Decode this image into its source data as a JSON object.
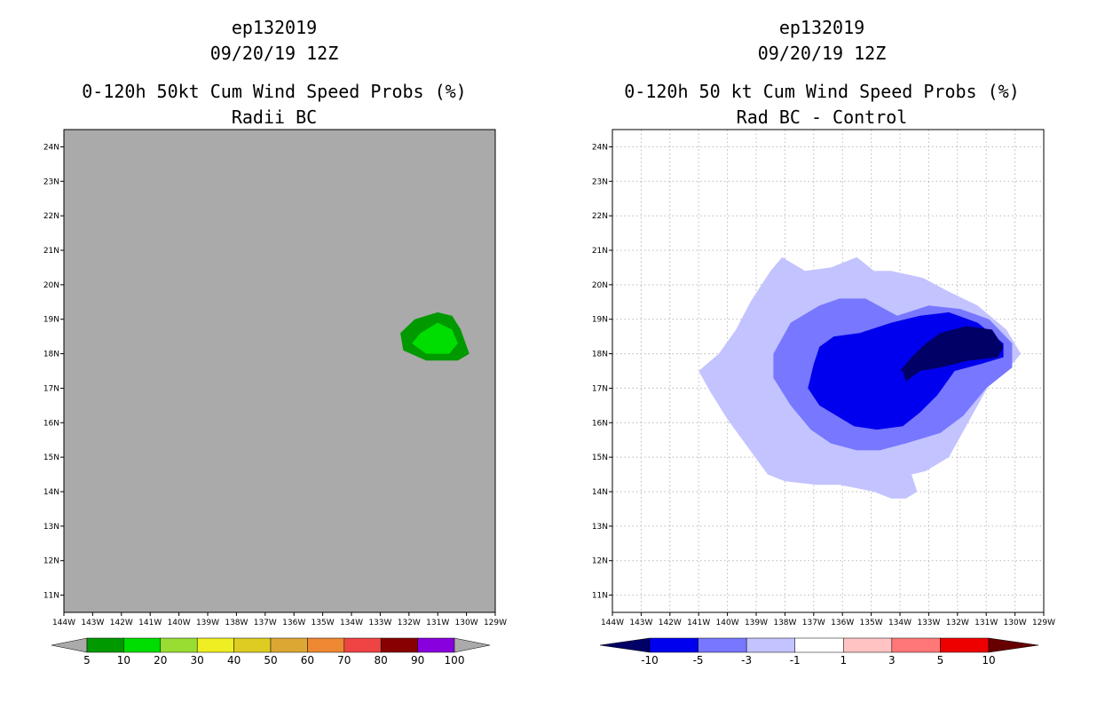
{
  "left_panel": {
    "title_lines": [
      "ep132019",
      "09/20/19 12Z",
      "0-120h 50kt Cum Wind Speed Probs (%)",
      "Radii BC"
    ]
  },
  "right_panel": {
    "title_lines": [
      "ep132019",
      "09/20/19 12Z",
      "0-120h 50 kt Cum Wind Speed Probs (%)",
      "Rad BC - Control"
    ]
  },
  "chart_data": [
    {
      "type": "filled-contour-map",
      "title": "0-120h 50kt Cum Wind Speed Probs (%)",
      "subtitle": "Radii BC",
      "storm": "ep132019",
      "valid_time": "09/20/19 12Z",
      "lon_range": [
        -144,
        -129
      ],
      "lat_range": [
        10.5,
        24.5
      ],
      "x_ticks": [
        "144W",
        "143W",
        "142W",
        "141W",
        "140W",
        "139W",
        "138W",
        "137W",
        "136W",
        "135W",
        "134W",
        "133W",
        "132W",
        "131W",
        "130W",
        "129W"
      ],
      "y_ticks": [
        "11N",
        "12N",
        "13N",
        "14N",
        "15N",
        "16N",
        "17N",
        "18N",
        "19N",
        "20N",
        "21N",
        "22N",
        "23N",
        "24N"
      ],
      "background_color": "#aaaaaa",
      "grid": false,
      "contours": [
        {
          "level": 5,
          "color": "#009900",
          "lonlat": [
            [
              -131.0,
              19.2
            ],
            [
              -130.5,
              19.1
            ],
            [
              -130.2,
              18.7
            ],
            [
              -129.9,
              18.0
            ],
            [
              -130.3,
              17.8
            ],
            [
              -131.4,
              17.8
            ],
            [
              -132.2,
              18.1
            ],
            [
              -132.3,
              18.6
            ],
            [
              -131.8,
              19.0
            ]
          ]
        },
        {
          "level": 10,
          "color": "#00dd00",
          "lonlat": [
            [
              -131.0,
              18.9
            ],
            [
              -130.5,
              18.7
            ],
            [
              -130.3,
              18.3
            ],
            [
              -130.6,
              18.0
            ],
            [
              -131.4,
              18.0
            ],
            [
              -131.9,
              18.3
            ],
            [
              -131.6,
              18.6
            ]
          ]
        }
      ],
      "colorbar": {
        "labels": [
          "5",
          "10",
          "20",
          "30",
          "40",
          "50",
          "60",
          "70",
          "80",
          "90",
          "100"
        ],
        "under_color": "#aaaaaa",
        "colors": [
          "#009900",
          "#00dd00",
          "#99dd33",
          "#eeee22",
          "#ddcc22",
          "#dda733",
          "#ee8833",
          "#ee4444",
          "#880000",
          "#8800dd"
        ],
        "over_color": "#aaaaaa"
      }
    },
    {
      "type": "filled-contour-map",
      "title": "0-120h 50 kt Cum Wind Speed Probs (%)",
      "subtitle": "Rad BC - Control",
      "storm": "ep132019",
      "valid_time": "09/20/19 12Z",
      "lon_range": [
        -144,
        -129
      ],
      "lat_range": [
        10.5,
        24.5
      ],
      "x_ticks": [
        "144W",
        "143W",
        "142W",
        "141W",
        "140W",
        "139W",
        "138W",
        "137W",
        "136W",
        "135W",
        "134W",
        "133W",
        "132W",
        "131W",
        "130W",
        "129W"
      ],
      "y_ticks": [
        "11N",
        "12N",
        "13N",
        "14N",
        "15N",
        "16N",
        "17N",
        "18N",
        "19N",
        "20N",
        "21N",
        "22N",
        "23N",
        "24N"
      ],
      "background_color": "#ffffff",
      "grid": true,
      "contours": [
        {
          "level": -1,
          "color": "#c3c3ff",
          "lonlat": [
            [
              -138.1,
              20.8
            ],
            [
              -137.3,
              20.4
            ],
            [
              -136.4,
              20.5
            ],
            [
              -135.5,
              20.8
            ],
            [
              -134.9,
              20.4
            ],
            [
              -134.3,
              20.4
            ],
            [
              -133.2,
              20.2
            ],
            [
              -132.3,
              19.8
            ],
            [
              -131.3,
              19.4
            ],
            [
              -130.3,
              18.7
            ],
            [
              -129.8,
              18.0
            ],
            [
              -130.3,
              17.5
            ],
            [
              -130.9,
              17.1
            ],
            [
              -131.5,
              16.2
            ],
            [
              -132.3,
              15.0
            ],
            [
              -133.1,
              14.6
            ],
            [
              -133.6,
              14.5
            ],
            [
              -133.4,
              14.0
            ],
            [
              -133.8,
              13.8
            ],
            [
              -134.3,
              13.8
            ],
            [
              -134.9,
              14.0
            ],
            [
              -136.1,
              14.2
            ],
            [
              -136.9,
              14.2
            ],
            [
              -138.0,
              14.3
            ],
            [
              -138.6,
              14.5
            ],
            [
              -139.3,
              15.3
            ],
            [
              -140.0,
              16.1
            ],
            [
              -140.6,
              16.9
            ],
            [
              -141.0,
              17.5
            ],
            [
              -140.3,
              18.0
            ],
            [
              -139.7,
              18.7
            ],
            [
              -139.2,
              19.5
            ],
            [
              -138.5,
              20.4
            ]
          ]
        },
        {
          "level": -3,
          "color": "#7777ff",
          "lonlat": [
            [
              -136.1,
              19.6
            ],
            [
              -135.2,
              19.6
            ],
            [
              -134.1,
              19.1
            ],
            [
              -133.0,
              19.4
            ],
            [
              -131.9,
              19.3
            ],
            [
              -130.9,
              19.0
            ],
            [
              -130.1,
              18.3
            ],
            [
              -130.1,
              17.6
            ],
            [
              -131.0,
              17.0
            ],
            [
              -131.8,
              16.2
            ],
            [
              -132.6,
              15.7
            ],
            [
              -133.8,
              15.4
            ],
            [
              -134.7,
              15.2
            ],
            [
              -135.5,
              15.2
            ],
            [
              -136.4,
              15.4
            ],
            [
              -137.1,
              15.8
            ],
            [
              -137.8,
              16.5
            ],
            [
              -138.4,
              17.3
            ],
            [
              -138.4,
              18.0
            ],
            [
              -137.8,
              18.9
            ],
            [
              -136.8,
              19.4
            ]
          ]
        },
        {
          "level": -5,
          "color": "#0000ee",
          "lonlat": [
            [
              -136.3,
              18.5
            ],
            [
              -135.4,
              18.6
            ],
            [
              -134.3,
              18.9
            ],
            [
              -133.3,
              19.1
            ],
            [
              -132.3,
              19.2
            ],
            [
              -131.3,
              18.9
            ],
            [
              -130.4,
              18.3
            ],
            [
              -130.4,
              17.9
            ],
            [
              -131.2,
              17.7
            ],
            [
              -132.1,
              17.5
            ],
            [
              -132.7,
              16.8
            ],
            [
              -133.3,
              16.3
            ],
            [
              -133.9,
              15.9
            ],
            [
              -134.8,
              15.8
            ],
            [
              -135.6,
              15.9
            ],
            [
              -136.2,
              16.2
            ],
            [
              -136.8,
              16.5
            ],
            [
              -137.2,
              17.0
            ],
            [
              -137.0,
              17.7
            ],
            [
              -136.8,
              18.2
            ]
          ]
        },
        {
          "level": -10,
          "color": "#000066",
          "lonlat": [
            [
              -132.6,
              18.6
            ],
            [
              -131.7,
              18.8
            ],
            [
              -130.8,
              18.7
            ],
            [
              -130.4,
              18.2
            ],
            [
              -130.6,
              17.9
            ],
            [
              -131.6,
              17.8
            ],
            [
              -132.6,
              17.6
            ],
            [
              -133.3,
              17.5
            ],
            [
              -133.8,
              17.2
            ],
            [
              -133.9,
              17.5
            ],
            [
              -134.0,
              17.5
            ],
            [
              -133.6,
              17.9
            ],
            [
              -133.1,
              18.3
            ]
          ]
        }
      ],
      "colorbar": {
        "labels": [
          "-10",
          "-5",
          "-3",
          "-1",
          "1",
          "3",
          "5",
          "10"
        ],
        "under_color": "#000066",
        "colors": [
          "#0000ee",
          "#7777ff",
          "#c3c3ff",
          "#ffffff",
          "#ffc3c3",
          "#ff7777",
          "#ee0000"
        ],
        "over_color": "#660000"
      }
    }
  ]
}
